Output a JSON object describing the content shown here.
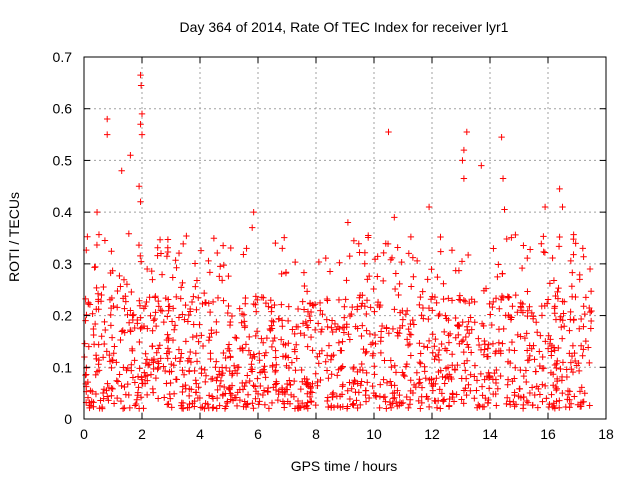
{
  "chart_data": {
    "type": "scatter",
    "title": "Day 364 of 2014, Rate Of TEC Index for receiver lyr1",
    "xlabel": "GPS time / hours",
    "ylabel": "ROTI / TECUs",
    "xlim": [
      0,
      18
    ],
    "ylim": [
      0,
      0.7
    ],
    "xticks": [
      0,
      2,
      4,
      6,
      8,
      10,
      12,
      14,
      16,
      18
    ],
    "yticks": [
      0,
      0.1,
      0.2,
      0.3,
      0.4,
      0.5,
      0.6,
      0.7
    ],
    "xtick_labels": [
      "0",
      "2",
      "4",
      "6",
      "8",
      "10",
      "12",
      "14",
      "16",
      "18"
    ],
    "ytick_labels": [
      "0",
      "0.1",
      "0.2",
      "0.3",
      "0.4",
      "0.5",
      "0.6",
      "0.7"
    ],
    "grid": true,
    "marker": "+",
    "color": "#ff0000",
    "data_x_range": [
      0,
      17.5
    ],
    "dense_band": [
      0.02,
      0.24
    ],
    "notable_points": [
      {
        "x": 0.8,
        "y": 0.58
      },
      {
        "x": 0.8,
        "y": 0.55
      },
      {
        "x": 1.3,
        "y": 0.48
      },
      {
        "x": 1.6,
        "y": 0.51
      },
      {
        "x": 1.95,
        "y": 0.665
      },
      {
        "x": 1.97,
        "y": 0.645
      },
      {
        "x": 2.0,
        "y": 0.59
      },
      {
        "x": 1.95,
        "y": 0.57
      },
      {
        "x": 2.0,
        "y": 0.55
      },
      {
        "x": 1.9,
        "y": 0.45
      },
      {
        "x": 1.95,
        "y": 0.42
      },
      {
        "x": 0.45,
        "y": 0.4
      },
      {
        "x": 5.85,
        "y": 0.4
      },
      {
        "x": 5.8,
        "y": 0.37
      },
      {
        "x": 6.6,
        "y": 0.34
      },
      {
        "x": 9.1,
        "y": 0.38
      },
      {
        "x": 10.5,
        "y": 0.555
      },
      {
        "x": 10.7,
        "y": 0.39
      },
      {
        "x": 11.9,
        "y": 0.41
      },
      {
        "x": 13.2,
        "y": 0.555
      },
      {
        "x": 13.1,
        "y": 0.52
      },
      {
        "x": 13.05,
        "y": 0.5
      },
      {
        "x": 13.1,
        "y": 0.465
      },
      {
        "x": 13.7,
        "y": 0.49
      },
      {
        "x": 14.4,
        "y": 0.545
      },
      {
        "x": 14.45,
        "y": 0.465
      },
      {
        "x": 14.5,
        "y": 0.405
      },
      {
        "x": 15.9,
        "y": 0.41
      },
      {
        "x": 16.4,
        "y": 0.445
      },
      {
        "x": 16.5,
        "y": 0.41
      },
      {
        "x": 17.2,
        "y": 0.33
      },
      {
        "x": 17.45,
        "y": 0.29
      }
    ]
  }
}
